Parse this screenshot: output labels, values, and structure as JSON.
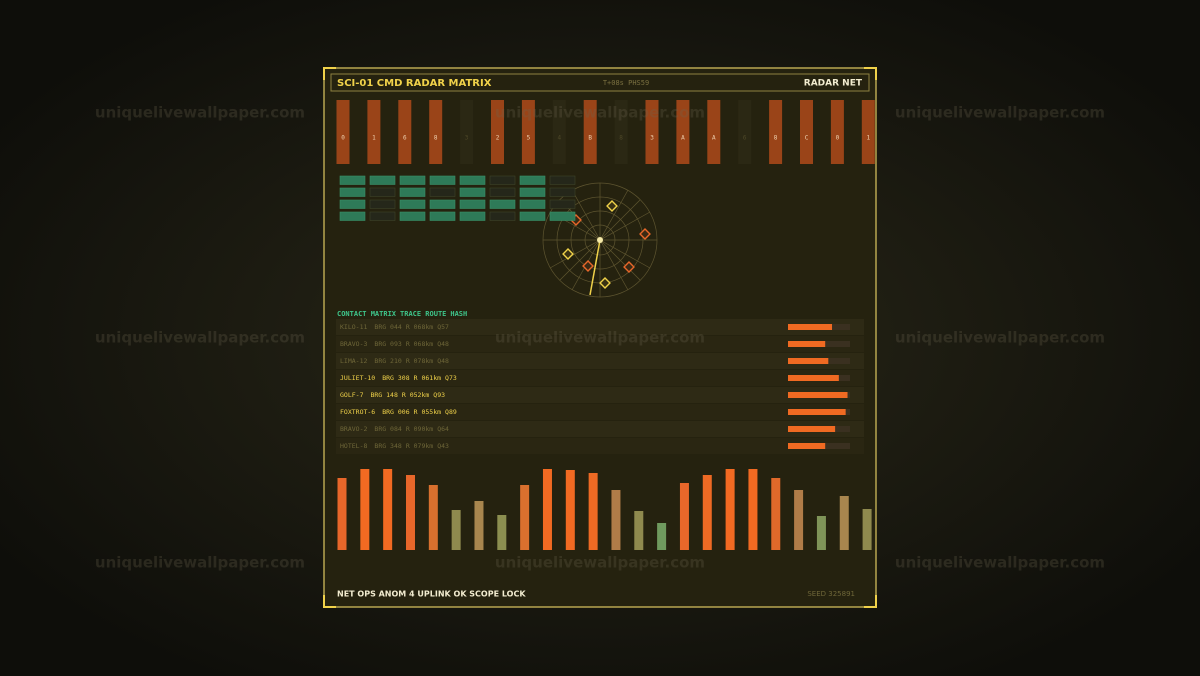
{
  "watermark": "uniquelivewallpaper.com",
  "header": {
    "title": "SCI-01  CMD RADAR MATRIX",
    "clock": "T+08s PHS59",
    "mode": "RADAR NET"
  },
  "strip": [
    {
      "char": "0",
      "on": true
    },
    {
      "char": "1",
      "on": true
    },
    {
      "char": "6",
      "on": true
    },
    {
      "char": "8",
      "on": true
    },
    {
      "char": "3",
      "on": false
    },
    {
      "char": "2",
      "on": true
    },
    {
      "char": "5",
      "on": true
    },
    {
      "char": "4",
      "on": false
    },
    {
      "char": "B",
      "on": true
    },
    {
      "char": "8",
      "on": false
    },
    {
      "char": "3",
      "on": true
    },
    {
      "char": "A",
      "on": true
    },
    {
      "char": "A",
      "on": true
    },
    {
      "char": "6",
      "on": false
    },
    {
      "char": "8",
      "on": true
    },
    {
      "char": "C",
      "on": true
    },
    {
      "char": "0",
      "on": true
    },
    {
      "char": "1",
      "on": true
    }
  ],
  "matrix": [
    [
      1,
      1,
      1,
      1,
      1,
      0,
      1,
      0
    ],
    [
      1,
      0,
      1,
      0,
      1,
      0,
      1,
      0
    ],
    [
      1,
      0,
      1,
      1,
      1,
      1,
      1,
      0
    ],
    [
      1,
      0,
      1,
      1,
      1,
      0,
      1,
      1
    ]
  ],
  "tabs": [
    "CONTACT MATRIX",
    "TRACE ROUTE",
    "HASH"
  ],
  "contacts": [
    {
      "name": "KILO-11",
      "brg": "BRG 044",
      "range": "R 068km",
      "q": "Q57",
      "highlight": false,
      "level": 71
    },
    {
      "name": "BRAVO-3",
      "brg": "BRG 093",
      "range": "R 068km",
      "q": "Q48",
      "highlight": false,
      "level": 60
    },
    {
      "name": "LIMA-12",
      "brg": "BRG 210",
      "range": "R 078km",
      "q": "Q48",
      "highlight": false,
      "level": 65
    },
    {
      "name": "JULIET-10",
      "brg": "BRG 308",
      "range": "R 061km",
      "q": "Q73",
      "highlight": true,
      "level": 82
    },
    {
      "name": "GOLF-7",
      "brg": "BRG 148",
      "range": "R 052km",
      "q": "Q93",
      "highlight": true,
      "level": 96
    },
    {
      "name": "FOXTROT-6",
      "brg": "BRG 006",
      "range": "R 055km",
      "q": "Q89",
      "highlight": true,
      "level": 93
    },
    {
      "name": "BRAVO-2",
      "brg": "BRG 084",
      "range": "R 090km",
      "q": "Q64",
      "highlight": false,
      "level": 76
    },
    {
      "name": "HOTEL-8",
      "brg": "BRG 348",
      "range": "R 079km",
      "q": "Q43",
      "highlight": false,
      "level": 60
    }
  ],
  "levels": {
    "values": [
      72,
      81,
      81,
      75,
      65,
      40,
      49,
      35,
      65,
      81,
      80,
      77,
      60,
      39,
      27,
      67,
      75,
      81,
      81,
      72,
      60,
      34,
      54,
      41
    ],
    "colors": [
      "#e8672a",
      "#f26a22",
      "#f26a22",
      "#e8672a",
      "#d9702e",
      "#8f8a4e",
      "#a8864e",
      "#8c8f50",
      "#d9702e",
      "#f26a22",
      "#f26a22",
      "#ee6a24",
      "#b07c48",
      "#8f8a4e",
      "#6f9a5e",
      "#e8672a",
      "#ee6a24",
      "#f26a22",
      "#f26a22",
      "#e0692a",
      "#b07c48",
      "#7f9458",
      "#a8864e",
      "#8f8a4e"
    ]
  },
  "footer": {
    "status": "NET OPS  ANOM 4  UPLINK OK  SCOPE LOCK",
    "seed": "SEED 325891"
  }
}
